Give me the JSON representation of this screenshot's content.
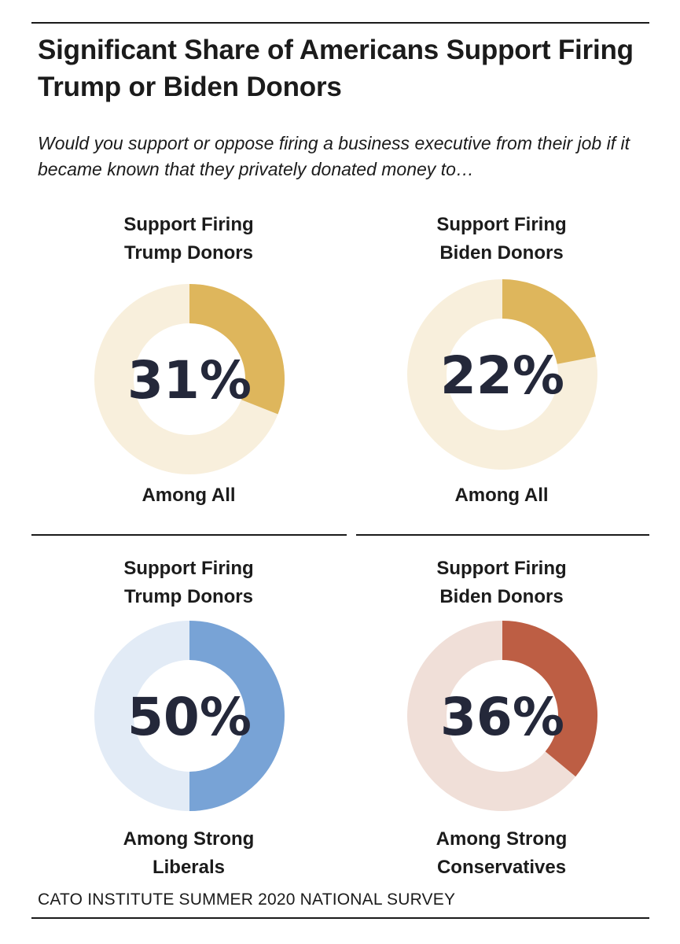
{
  "title": "Significant Share of Americans Support Firing Trump or Biden Donors",
  "subtitle": "Would you support or oppose firing a business executive from their job if it became known that they privately donated money to…",
  "source": "CATO INSTITUTE SUMMER 2020 NATIONAL SURVEY",
  "chart_data": [
    {
      "type": "pie",
      "variant": "donut",
      "title_lines": [
        "Support Firing",
        "Trump Donors"
      ],
      "group_lines": [
        "Among All"
      ],
      "value": 31,
      "label": "31%",
      "colors": {
        "fill": "#deb65c",
        "track": "#f8efdc"
      }
    },
    {
      "type": "pie",
      "variant": "donut",
      "title_lines": [
        "Support Firing",
        "Biden Donors"
      ],
      "group_lines": [
        "Among All"
      ],
      "value": 22,
      "label": "22%",
      "colors": {
        "fill": "#deb65c",
        "track": "#f8efdc"
      }
    },
    {
      "type": "pie",
      "variant": "donut",
      "title_lines": [
        "Support Firing",
        "Trump Donors"
      ],
      "group_lines": [
        "Among Strong",
        "Liberals"
      ],
      "value": 50,
      "label": "50%",
      "colors": {
        "fill": "#78a3d6",
        "track": "#e2ebf6"
      }
    },
    {
      "type": "pie",
      "variant": "donut",
      "title_lines": [
        "Support Firing",
        "Biden Donors"
      ],
      "group_lines": [
        "Among Strong",
        "Conservatives"
      ],
      "value": 36,
      "label": "36%",
      "colors": {
        "fill": "#bd5e44",
        "track": "#f0dfd8"
      }
    }
  ]
}
